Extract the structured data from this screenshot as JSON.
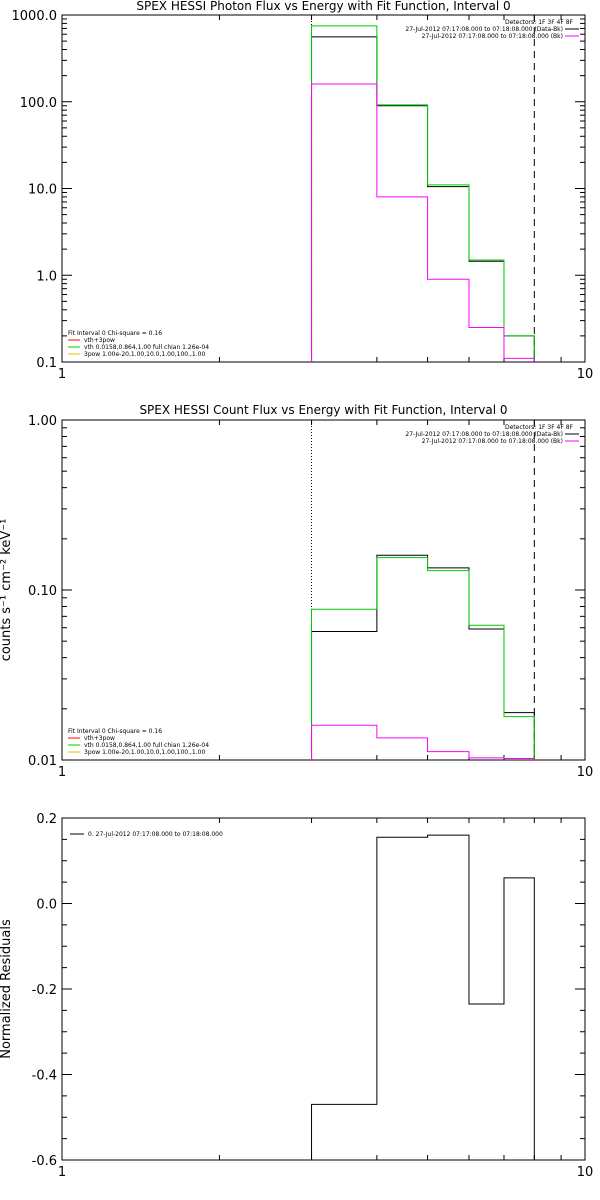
{
  "chart_data": [
    {
      "type": "line",
      "title": "SPEX HESSI Photon Flux vs Energy with Fit Function, Interval 0",
      "xscale": "log",
      "yscale": "log",
      "xlim": [
        1,
        10
      ],
      "ylim": [
        0.1,
        1000
      ],
      "x_ticks": [
        "1",
        "10"
      ],
      "y_ticks": [
        {
          "value": 0.1,
          "label": "0.1"
        },
        {
          "value": 1,
          "label": "1.0"
        },
        {
          "value": 10,
          "label": "10.0"
        },
        {
          "value": 100,
          "label": "100.0"
        },
        {
          "value": 1000,
          "label": "1000.0"
        }
      ],
      "ylabel": "",
      "vlines": [
        {
          "x": 3,
          "style": "dotted"
        },
        {
          "x": 8,
          "style": "dashed"
        }
      ],
      "bin_edges": [
        3,
        4,
        5,
        6,
        7,
        8
      ],
      "series": [
        {
          "color": "#000000",
          "values": [
            560,
            90,
            10.5,
            1.45,
            0.2
          ]
        },
        {
          "color": "#00cc00",
          "values": [
            750,
            92,
            11,
            1.5,
            0.2
          ]
        },
        {
          "color": "#ff00ff",
          "values": [
            160,
            8,
            0.9,
            0.25,
            0.11
          ]
        }
      ],
      "legend_topright": [
        {
          "text": "Detectors: 1F 3F 4F 8F",
          "color": ""
        },
        {
          "text": "27-Jul-2012 07:17:08.000 to 07:18:08.000 (Data-Bk)",
          "color": "#000000"
        },
        {
          "text": "27-Jul-2012 07:17:08.000 to 07:18:08.000 (Bk)",
          "color": "#ff00ff"
        }
      ],
      "legend_bottomleft": [
        {
          "text": "Fit Interval 0   Chi-square = 0.16",
          "color": ""
        },
        {
          "text": "vth+3pow",
          "color": "#ff0000"
        },
        {
          "text": "vth 0.0158,0.864,1.00  full chian 1.26e-04",
          "color": "#00cc00"
        },
        {
          "text": "3pow 1.00e-20,1.00,10.0,1.00,100.,1.00",
          "color": "#e8c000"
        }
      ]
    },
    {
      "type": "line",
      "title": "SPEX HESSI Count Flux vs Energy with Fit Function, Interval 0",
      "xscale": "log",
      "yscale": "log",
      "xlim": [
        1,
        10
      ],
      "ylim": [
        0.01,
        1
      ],
      "x_ticks": [
        "1",
        "10"
      ],
      "y_ticks": [
        {
          "value": 0.01,
          "label": "0.01"
        },
        {
          "value": 0.1,
          "label": "0.10"
        },
        {
          "value": 1,
          "label": "1.00"
        }
      ],
      "ylabel": "counts s⁻¹ cm⁻² keV⁻¹",
      "vlines": [
        {
          "x": 3,
          "style": "dotted"
        },
        {
          "x": 8,
          "style": "dashed"
        }
      ],
      "bin_edges": [
        3,
        4,
        5,
        6,
        7,
        8
      ],
      "series": [
        {
          "color": "#000000",
          "values": [
            0.057,
            0.16,
            0.135,
            0.059,
            0.019
          ]
        },
        {
          "color": "#00cc00",
          "values": [
            0.077,
            0.155,
            0.13,
            0.062,
            0.018
          ]
        },
        {
          "color": "#ff00ff",
          "values": [
            0.016,
            0.0135,
            0.0112,
            0.0103,
            0.0102
          ]
        }
      ],
      "legend_topright": [
        {
          "text": "Detectors: 1F 3F 4F 8F",
          "color": ""
        },
        {
          "text": "27-Jul-2012 07:17:08.000 to 07:18:08.000 (Data-Bk)",
          "color": "#000000"
        },
        {
          "text": "27-Jul-2012 07:17:08.000 to 07:18:08.000 (Bk)",
          "color": "#ff00ff"
        }
      ],
      "legend_bottomleft": [
        {
          "text": "Fit Interval 0   Chi-square = 0.16",
          "color": ""
        },
        {
          "text": "vth+3pow",
          "color": "#ff0000"
        },
        {
          "text": "vth 0.0158,0.864,1.00  full chian 1.26e-04",
          "color": "#00cc00"
        },
        {
          "text": "3pow 1.00e-20,1.00,10.0,1.00,100.,1.00",
          "color": "#e8c000"
        }
      ]
    },
    {
      "type": "line",
      "title": "",
      "xscale": "log",
      "yscale": "linear",
      "xlim": [
        1,
        10
      ],
      "ylim": [
        -0.6,
        0.2
      ],
      "x_ticks": [
        "1",
        "10"
      ],
      "y_ticks": [
        {
          "value": -0.6,
          "label": "-0.6"
        },
        {
          "value": -0.4,
          "label": "-0.4"
        },
        {
          "value": -0.2,
          "label": "-0.2"
        },
        {
          "value": 0.0,
          "label": "0.0"
        },
        {
          "value": 0.2,
          "label": "0.2"
        }
      ],
      "ylabel": "Normalized Residuals",
      "vlines": [],
      "bin_edges": [
        3,
        4,
        5,
        6,
        7,
        8
      ],
      "series": [
        {
          "color": "#000000",
          "values": [
            -0.47,
            0.155,
            0.16,
            -0.235,
            0.06
          ]
        }
      ],
      "legend_topleft": [
        {
          "text": "0. 27-Jul-2012 07:17:08.000 to 07:18:08.000",
          "color": "#000000"
        }
      ]
    }
  ]
}
